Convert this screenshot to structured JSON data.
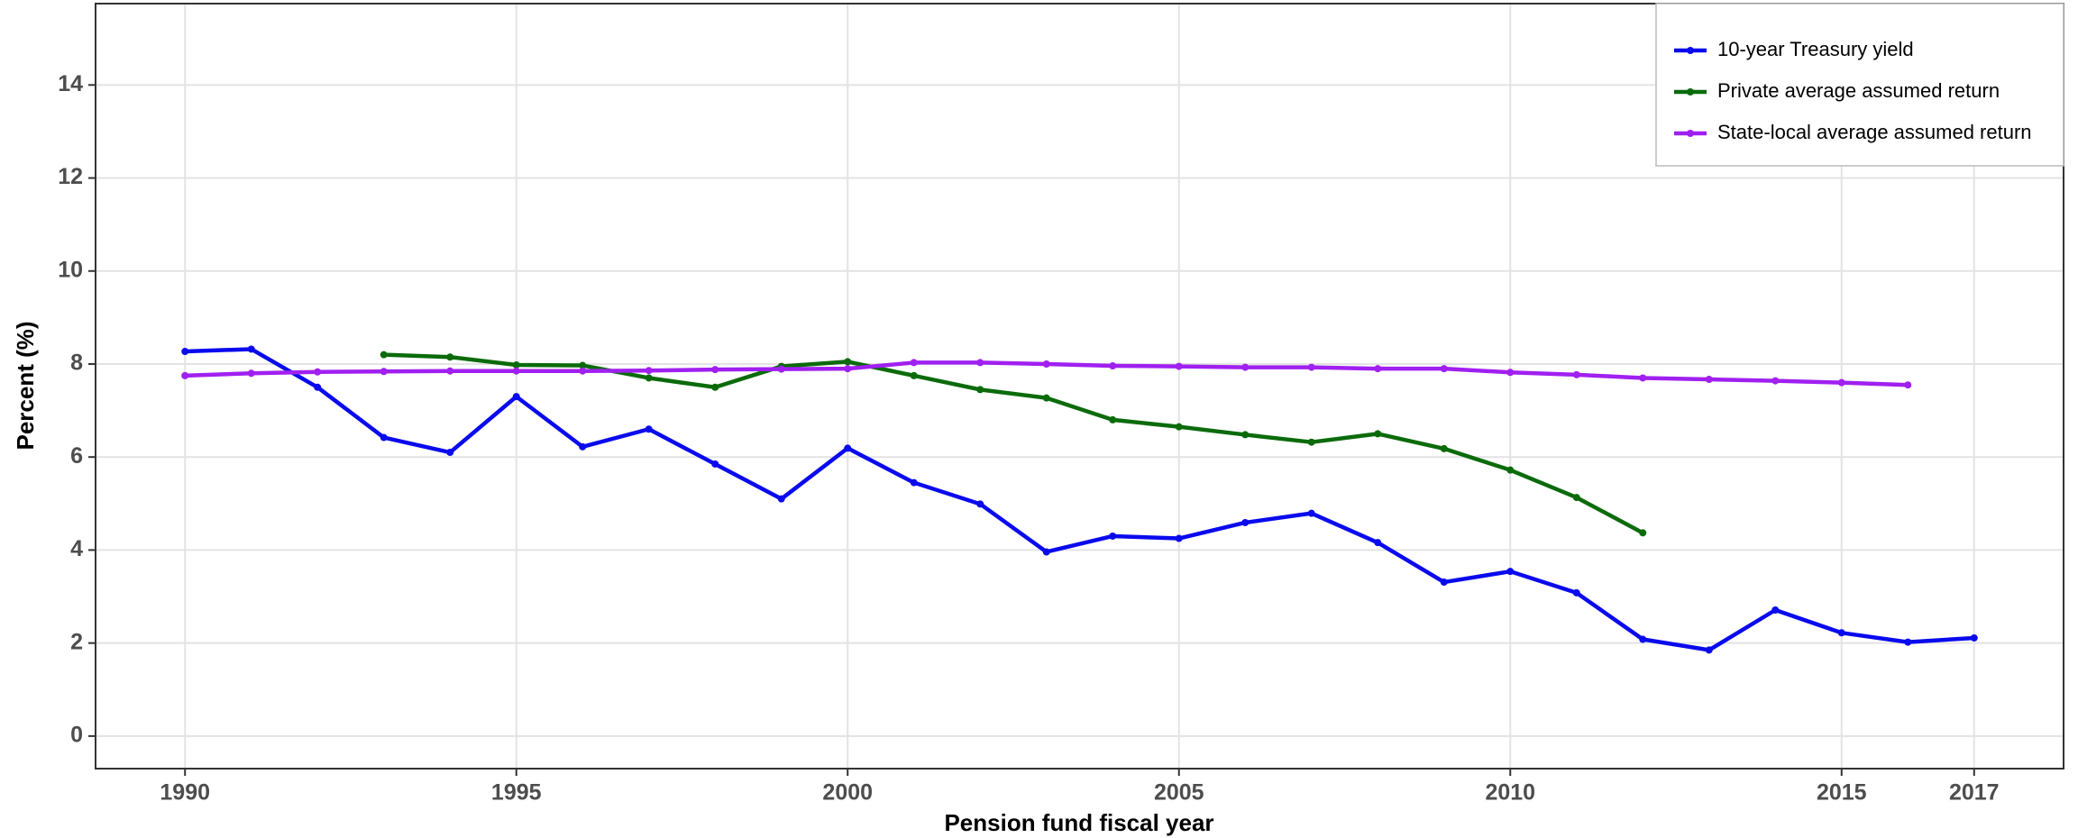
{
  "chart_data": {
    "type": "line",
    "x": [
      1990,
      1991,
      1992,
      1993,
      1994,
      1995,
      1996,
      1997,
      1998,
      1999,
      2000,
      2001,
      2002,
      2003,
      2004,
      2005,
      2006,
      2007,
      2008,
      2009,
      2010,
      2011,
      2012,
      2013,
      2014,
      2015,
      2016,
      2017
    ],
    "series": [
      {
        "name": "10-year Treasury yield",
        "color": "#0a0aee",
        "values": [
          8.27,
          8.32,
          7.5,
          6.42,
          6.1,
          7.3,
          6.22,
          6.6,
          5.85,
          5.1,
          6.19,
          5.45,
          4.99,
          3.96,
          4.3,
          4.25,
          4.59,
          4.79,
          4.16,
          3.31,
          3.54,
          3.08,
          2.08,
          1.85,
          2.71,
          2.22,
          2.02,
          2.11
        ]
      },
      {
        "name": "Private average assumed return",
        "color": "#0b6b0b",
        "values": [
          null,
          null,
          null,
          8.2,
          8.15,
          7.98,
          7.97,
          7.7,
          7.5,
          7.95,
          8.05,
          7.75,
          7.45,
          7.27,
          6.8,
          6.65,
          6.48,
          6.32,
          6.5,
          6.18,
          5.72,
          5.13,
          4.37,
          null,
          null,
          null,
          null,
          null
        ]
      },
      {
        "name": "State-local average assumed return",
        "color": "#a020f0",
        "values": [
          7.75,
          7.8,
          7.83,
          7.84,
          7.85,
          7.85,
          7.85,
          7.86,
          7.88,
          7.89,
          7.9,
          8.03,
          8.03,
          8.0,
          7.96,
          7.95,
          7.93,
          7.93,
          7.9,
          7.9,
          7.82,
          7.77,
          7.7,
          7.67,
          7.64,
          7.6,
          7.55,
          null
        ]
      }
    ],
    "xlabel": "Pension fund fiscal year",
    "ylabel": "Percent (%)",
    "xlim": [
      1988.65,
      2018.35
    ],
    "xticks": [
      1990,
      1995,
      2000,
      2005,
      2010,
      2015,
      2017
    ],
    "ylim": [
      -0.7,
      15.75
    ],
    "yticks": [
      0,
      2,
      4,
      6,
      8,
      10,
      12,
      14
    ],
    "grid": true,
    "legend": "upper right"
  }
}
